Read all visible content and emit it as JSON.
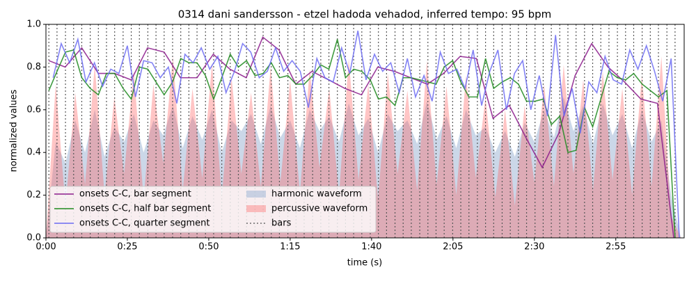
{
  "chart_data": {
    "type": "line",
    "title": "0314 dani sandersson - etzel hadoda vehadod, inferred tempo: 95 bpm",
    "x_label": "time (s)",
    "y_label": "normalized values",
    "xlim": [
      0,
      196
    ],
    "ylim": [
      0,
      1
    ],
    "xticks": [
      {
        "value": 0,
        "label": "0:00"
      },
      {
        "value": 25,
        "label": "0:25"
      },
      {
        "value": 50,
        "label": "0:50"
      },
      {
        "value": 75,
        "label": "1:15"
      },
      {
        "value": 100,
        "label": "1:40"
      },
      {
        "value": 125,
        "label": "2:05"
      },
      {
        "value": 150,
        "label": "2:30"
      },
      {
        "value": 175,
        "label": "2:55"
      }
    ],
    "yticks": [
      {
        "value": 0,
        "label": "0.0"
      },
      {
        "value": 0.2,
        "label": "0.2"
      },
      {
        "value": 0.4,
        "label": "0.4"
      },
      {
        "value": 0.6,
        "label": "0.6"
      },
      {
        "value": 0.8,
        "label": "0.8"
      },
      {
        "value": 1,
        "label": "1.0"
      }
    ],
    "legend": "lower left",
    "series": [
      {
        "name": "onsets C-C, bar segment",
        "style": "line",
        "color": "#8b1a8b",
        "x": [
          0.9,
          5.9,
          11.0,
          16.1,
          21.1,
          26.2,
          31.2,
          36.3,
          41.3,
          46.4,
          51.4,
          56.5,
          61.5,
          66.6,
          71.6,
          76.7,
          81.7,
          86.8,
          91.8,
          96.9,
          101.9,
          107.0,
          112.0,
          117.1,
          122.1,
          127.2,
          132.2,
          137.3,
          142.3,
          147.4,
          152.4,
          157.5,
          162.5,
          167.6,
          172.6,
          177.7,
          182.7,
          187.8,
          192.8
        ],
        "values": [
          0.83,
          0.8,
          0.89,
          0.77,
          0.77,
          0.74,
          0.89,
          0.87,
          0.75,
          0.75,
          0.86,
          0.79,
          0.75,
          0.94,
          0.88,
          0.72,
          0.78,
          0.74,
          0.7,
          0.67,
          0.8,
          0.78,
          0.75,
          0.72,
          0.77,
          0.85,
          0.84,
          0.56,
          0.62,
          0.47,
          0.33,
          0.49,
          0.76,
          0.91,
          0.8,
          0.73,
          0.65,
          0.63,
          0.0
        ]
      },
      {
        "name": "onsets C-C, half bar segment",
        "style": "line",
        "color": "#1f8a1f",
        "x": [
          0.9,
          3.4,
          6.0,
          8.5,
          11.0,
          13.6,
          16.1,
          18.6,
          21.1,
          23.7,
          26.2,
          28.7,
          31.3,
          33.8,
          36.3,
          38.9,
          41.4,
          43.9,
          46.4,
          49.0,
          51.5,
          54.0,
          56.6,
          59.1,
          61.6,
          64.2,
          66.7,
          69.2,
          71.7,
          74.3,
          76.8,
          79.3,
          81.9,
          84.4,
          86.9,
          89.5,
          92.0,
          94.5,
          97.0,
          99.6,
          102.1,
          104.6,
          107.2,
          109.7,
          112.2,
          114.8,
          117.3,
          119.8,
          122.3,
          124.9,
          127.4,
          129.9,
          132.5,
          135.0,
          137.5,
          140.1,
          142.6,
          145.1,
          147.6,
          150.2,
          152.7,
          155.2,
          157.8,
          160.3,
          162.8,
          165.4,
          167.9,
          170.4,
          172.9,
          175.5,
          178.0,
          180.5,
          183.1,
          185.6,
          188.1,
          190.7,
          193.2
        ],
        "values": [
          0.69,
          0.78,
          0.87,
          0.88,
          0.75,
          0.7,
          0.67,
          0.77,
          0.77,
          0.7,
          0.65,
          0.8,
          0.79,
          0.73,
          0.67,
          0.73,
          0.84,
          0.82,
          0.82,
          0.76,
          0.65,
          0.75,
          0.86,
          0.8,
          0.83,
          0.76,
          0.77,
          0.82,
          0.75,
          0.76,
          0.72,
          0.72,
          0.76,
          0.81,
          0.79,
          0.93,
          0.75,
          0.79,
          0.78,
          0.74,
          0.65,
          0.66,
          0.62,
          0.75,
          0.75,
          0.74,
          0.73,
          0.72,
          0.8,
          0.83,
          0.73,
          0.66,
          0.66,
          0.84,
          0.7,
          0.73,
          0.75,
          0.72,
          0.64,
          0.64,
          0.65,
          0.53,
          0.57,
          0.4,
          0.41,
          0.61,
          0.52,
          0.65,
          0.78,
          0.75,
          0.74,
          0.77,
          0.72,
          0.69,
          0.66,
          0.69,
          0.0
        ]
      },
      {
        "name": "onsets C-C, quarter segment",
        "style": "line",
        "color": "#6c6cf2",
        "x": [
          2.2,
          4.7,
          7.3,
          9.8,
          12.3,
          14.9,
          17.4,
          19.9,
          22.4,
          25.0,
          27.5,
          30.0,
          32.6,
          35.1,
          37.6,
          40.2,
          42.7,
          45.2,
          47.7,
          50.3,
          52.8,
          55.3,
          57.9,
          60.4,
          62.9,
          65.5,
          68.0,
          70.5,
          73.0,
          75.6,
          78.1,
          80.6,
          83.2,
          85.7,
          88.2,
          90.8,
          93.3,
          95.8,
          98.3,
          100.9,
          103.4,
          105.9,
          108.5,
          111.0,
          113.5,
          116.1,
          118.6,
          121.1,
          123.6,
          126.2,
          128.7,
          131.2,
          133.8,
          136.3,
          138.8,
          141.4,
          143.9,
          146.4,
          148.9,
          151.5,
          154.0,
          156.5,
          159.1,
          161.6,
          164.1,
          166.7,
          169.2,
          171.7,
          174.2,
          176.8,
          179.3,
          181.8,
          184.4,
          186.9,
          189.4,
          192.0,
          194.5
        ],
        "values": [
          0.75,
          0.91,
          0.82,
          0.93,
          0.73,
          0.82,
          0.71,
          0.79,
          0.77,
          0.9,
          0.66,
          0.83,
          0.82,
          0.75,
          0.8,
          0.63,
          0.86,
          0.82,
          0.89,
          0.79,
          0.85,
          0.68,
          0.78,
          0.91,
          0.87,
          0.75,
          0.78,
          0.89,
          0.78,
          0.83,
          0.78,
          0.61,
          0.84,
          0.75,
          0.73,
          0.89,
          0.77,
          0.97,
          0.74,
          0.86,
          0.78,
          0.82,
          0.68,
          0.84,
          0.66,
          0.76,
          0.64,
          0.87,
          0.77,
          0.79,
          0.7,
          0.88,
          0.62,
          0.78,
          0.88,
          0.6,
          0.77,
          0.83,
          0.6,
          0.76,
          0.57,
          0.95,
          0.57,
          0.7,
          0.49,
          0.73,
          0.68,
          0.85,
          0.74,
          0.72,
          0.88,
          0.79,
          0.9,
          0.78,
          0.64,
          0.84,
          0.0
        ]
      },
      {
        "name": "harmonic waveform",
        "style": "area",
        "color": "#a9bcd8",
        "x": [
          0,
          3,
          6,
          9,
          12,
          15,
          18,
          21,
          24,
          27,
          30,
          33,
          36,
          39,
          42,
          45,
          48,
          51,
          54,
          57,
          60,
          63,
          66,
          69,
          72,
          75,
          78,
          81,
          84,
          87,
          90,
          93,
          96,
          99,
          102,
          105,
          108,
          111,
          114,
          117,
          120,
          123,
          126,
          129,
          132,
          135,
          138,
          141,
          144,
          147,
          150,
          153,
          156,
          159,
          162,
          165,
          168,
          171,
          174,
          177,
          180,
          183,
          186,
          189,
          192,
          195
        ],
        "values": [
          0.0,
          0.45,
          0.35,
          0.55,
          0.4,
          0.6,
          0.38,
          0.52,
          0.45,
          0.58,
          0.4,
          0.55,
          0.48,
          0.62,
          0.42,
          0.57,
          0.46,
          0.6,
          0.4,
          0.55,
          0.5,
          0.58,
          0.44,
          0.62,
          0.47,
          0.55,
          0.42,
          0.6,
          0.5,
          0.57,
          0.45,
          0.63,
          0.48,
          0.56,
          0.4,
          0.58,
          0.5,
          0.55,
          0.44,
          0.64,
          0.46,
          0.57,
          0.42,
          0.6,
          0.48,
          0.52,
          0.4,
          0.5,
          0.38,
          0.54,
          0.45,
          0.6,
          0.47,
          0.66,
          0.5,
          0.62,
          0.44,
          0.63,
          0.48,
          0.58,
          0.42,
          0.6,
          0.45,
          0.55,
          0.2,
          0.0
        ]
      },
      {
        "name": "percussive waveform",
        "style": "area",
        "color": "#ff5a5a",
        "x": [
          0,
          3,
          6,
          9,
          12,
          15,
          18,
          21,
          24,
          27,
          30,
          33,
          36,
          39,
          42,
          45,
          48,
          51,
          54,
          57,
          60,
          63,
          66,
          69,
          72,
          75,
          78,
          81,
          84,
          87,
          90,
          93,
          96,
          99,
          102,
          105,
          108,
          111,
          114,
          117,
          120,
          123,
          126,
          129,
          132,
          135,
          138,
          141,
          144,
          147,
          150,
          153,
          156,
          159,
          162,
          165,
          168,
          171,
          174,
          177,
          180,
          183,
          186,
          189,
          192,
          195
        ],
        "values": [
          0.0,
          0.72,
          0.15,
          0.68,
          0.25,
          0.81,
          0.2,
          0.66,
          0.3,
          0.78,
          0.18,
          0.72,
          0.35,
          0.85,
          0.22,
          0.7,
          0.28,
          0.82,
          0.19,
          0.75,
          0.3,
          0.68,
          0.24,
          0.8,
          0.26,
          0.74,
          0.21,
          0.79,
          0.33,
          0.7,
          0.2,
          0.84,
          0.27,
          0.72,
          0.18,
          0.77,
          0.3,
          0.69,
          0.22,
          0.83,
          0.25,
          0.71,
          0.2,
          0.76,
          0.28,
          0.66,
          0.19,
          0.6,
          0.15,
          0.62,
          0.26,
          0.72,
          0.24,
          0.81,
          0.3,
          0.74,
          0.22,
          0.78,
          0.27,
          0.7,
          0.2,
          0.76,
          0.24,
          0.85,
          0.1,
          0.0
        ]
      },
      {
        "name": "bars",
        "style": "vlines",
        "color": "#555555",
        "x": [
          0.9,
          3.4,
          6.0,
          8.5,
          11.0,
          13.6,
          16.1,
          18.6,
          21.1,
          23.7,
          26.2,
          28.7,
          31.3,
          33.8,
          36.3,
          38.9,
          41.4,
          43.9,
          46.4,
          49.0,
          51.5,
          54.0,
          56.6,
          59.1,
          61.6,
          64.2,
          66.7,
          69.2,
          71.7,
          74.3,
          76.8,
          79.3,
          81.9,
          84.4,
          86.9,
          89.5,
          92.0,
          94.5,
          97.0,
          99.6,
          102.1,
          104.6,
          107.2,
          109.7,
          112.2,
          114.8,
          117.3,
          119.8,
          122.3,
          124.9,
          127.4,
          129.9,
          132.5,
          135.0,
          137.5,
          140.1,
          142.6,
          145.1,
          147.6,
          150.2,
          152.7,
          155.2,
          157.8,
          160.3,
          162.8,
          165.4,
          167.9,
          170.4,
          172.9,
          175.5,
          178.0,
          180.5,
          183.1,
          185.6,
          188.1,
          190.7,
          193.2
        ]
      }
    ]
  }
}
